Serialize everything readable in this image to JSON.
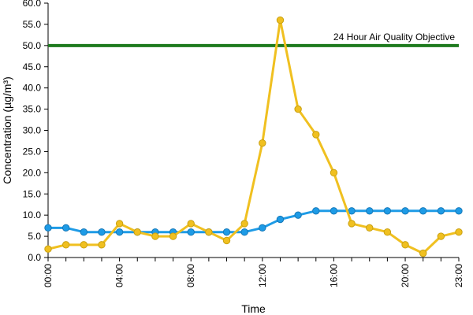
{
  "chart_data": {
    "type": "line",
    "xlabel": "Time",
    "ylabel": "Concentration (µg/m³)",
    "ylim": [
      0,
      60
    ],
    "y_tick_step": 5,
    "x_tick_labels": [
      "00:00",
      "04:00",
      "08:00",
      "12:00",
      "16:00",
      "20:00",
      "23:00"
    ],
    "x_tick_hours": [
      0,
      4,
      8,
      12,
      16,
      20,
      23
    ],
    "x": [
      0,
      1,
      2,
      3,
      4,
      5,
      6,
      7,
      8,
      9,
      10,
      11,
      12,
      13,
      14,
      15,
      16,
      17,
      18,
      19,
      20,
      21,
      22,
      23
    ],
    "grid": false,
    "series": [
      {
        "color": "#1e9be6",
        "values": [
          7,
          7,
          6,
          6,
          6,
          6,
          6,
          6,
          6,
          6,
          6,
          6,
          7,
          9,
          10,
          11,
          11,
          11,
          11,
          11,
          11,
          11,
          11,
          11
        ]
      },
      {
        "color": "#f0c020",
        "values": [
          2,
          3,
          3,
          3,
          8,
          6,
          5,
          5,
          8,
          6,
          4,
          8,
          27,
          56,
          35,
          29,
          20,
          8,
          7,
          6,
          3,
          1,
          5,
          6
        ]
      }
    ],
    "objective": {
      "value": 50,
      "label": "24 Hour Air Quality Objective",
      "color": "#1e7a1e"
    }
  }
}
